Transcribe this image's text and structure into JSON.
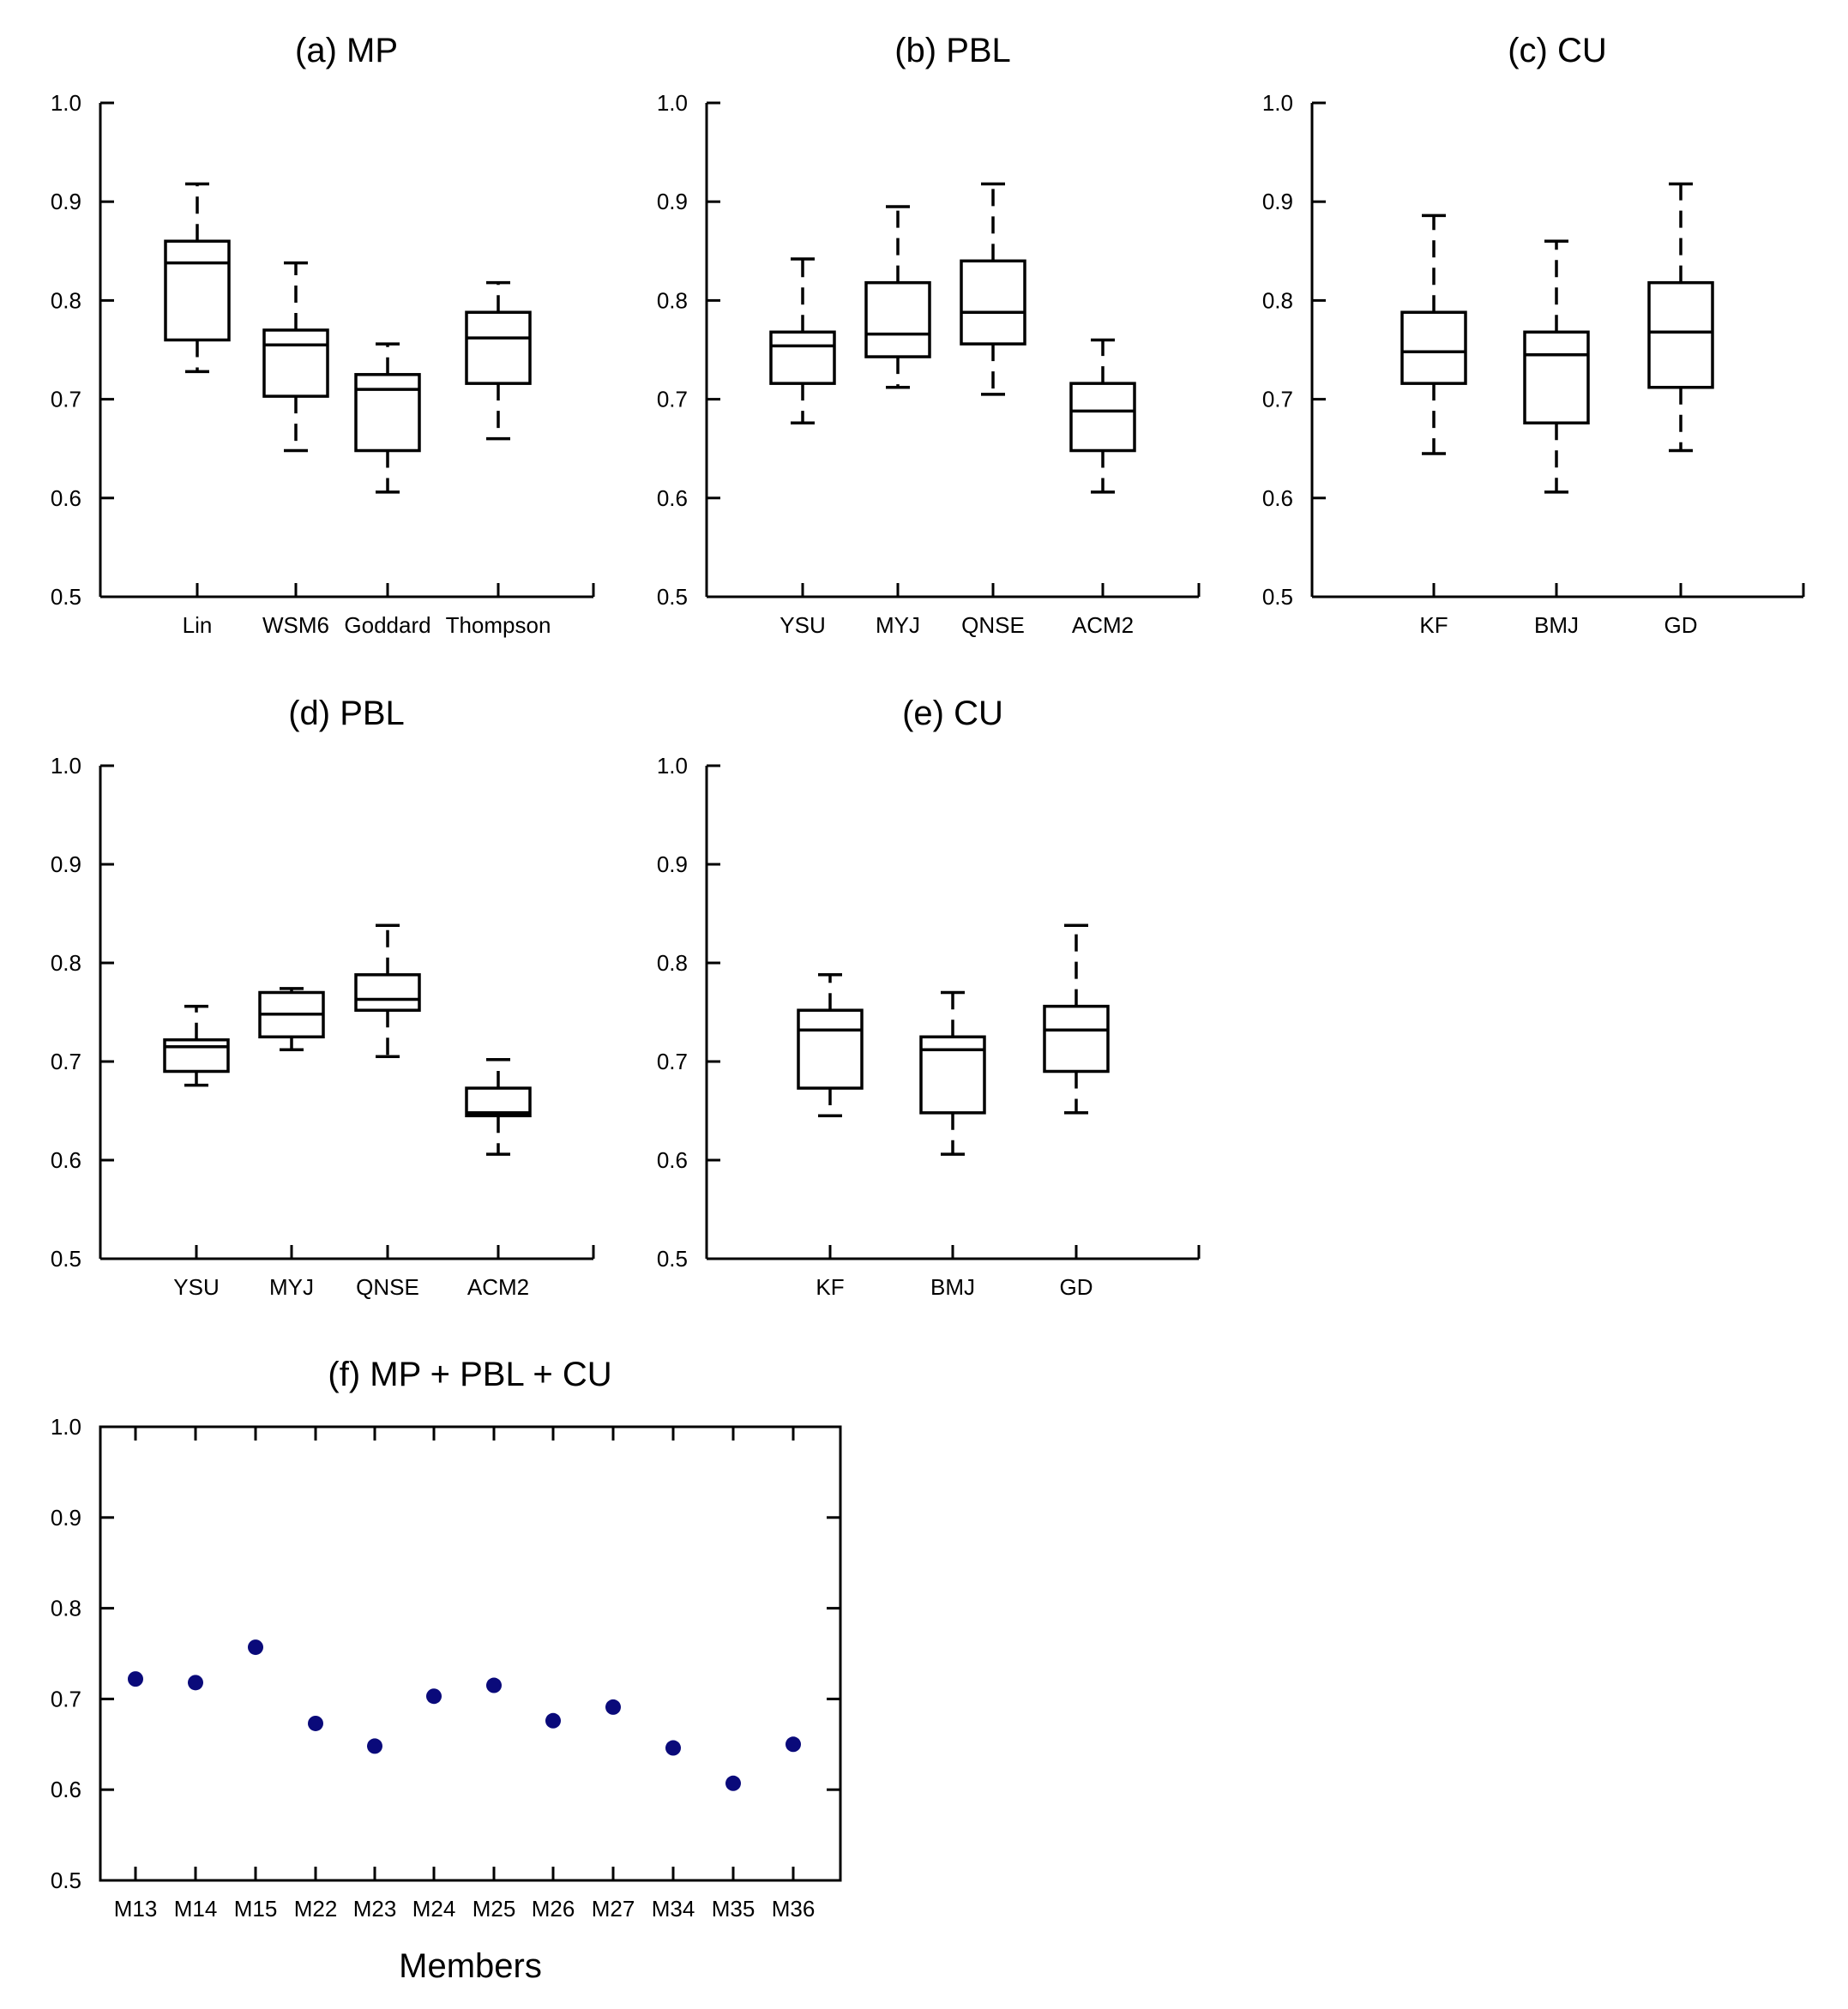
{
  "chart_data": [
    {
      "type": "box",
      "title": "(a) MP",
      "ylim": [
        0.5,
        1.0
      ],
      "yticks": [
        "0.5",
        "0.6",
        "0.7",
        "0.8",
        "0.9",
        "1.0"
      ],
      "categories": [
        "Lin",
        "WSM6",
        "Goddard",
        "Thompson"
      ],
      "boxes": [
        {
          "min": 0.728,
          "q1": 0.76,
          "median": 0.838,
          "q3": 0.86,
          "max": 0.918
        },
        {
          "min": 0.648,
          "q1": 0.703,
          "median": 0.755,
          "q3": 0.77,
          "max": 0.838
        },
        {
          "min": 0.606,
          "q1": 0.648,
          "median": 0.71,
          "q3": 0.725,
          "max": 0.756
        },
        {
          "min": 0.66,
          "q1": 0.716,
          "median": 0.762,
          "q3": 0.788,
          "max": 0.818
        }
      ]
    },
    {
      "type": "box",
      "title": "(b) PBL",
      "ylim": [
        0.5,
        1.0
      ],
      "yticks": [
        "0.5",
        "0.6",
        "0.7",
        "0.8",
        "0.9",
        "1.0"
      ],
      "categories": [
        "YSU",
        "MYJ",
        "QNSE",
        "ACM2"
      ],
      "boxes": [
        {
          "min": 0.676,
          "q1": 0.716,
          "median": 0.754,
          "q3": 0.768,
          "max": 0.842
        },
        {
          "min": 0.712,
          "q1": 0.743,
          "median": 0.766,
          "q3": 0.818,
          "max": 0.895
        },
        {
          "min": 0.705,
          "q1": 0.756,
          "median": 0.788,
          "q3": 0.84,
          "max": 0.918
        },
        {
          "min": 0.606,
          "q1": 0.648,
          "median": 0.688,
          "q3": 0.716,
          "max": 0.76
        }
      ]
    },
    {
      "type": "box",
      "title": "(c) CU",
      "ylim": [
        0.5,
        1.0
      ],
      "yticks": [
        "0.5",
        "0.6",
        "0.7",
        "0.8",
        "0.9",
        "1.0"
      ],
      "categories": [
        "KF",
        "BMJ",
        "GD"
      ],
      "boxes": [
        {
          "min": 0.645,
          "q1": 0.716,
          "median": 0.748,
          "q3": 0.788,
          "max": 0.886
        },
        {
          "min": 0.606,
          "q1": 0.676,
          "median": 0.745,
          "q3": 0.768,
          "max": 0.86
        },
        {
          "min": 0.648,
          "q1": 0.712,
          "median": 0.768,
          "q3": 0.818,
          "max": 0.918
        }
      ]
    },
    {
      "type": "box",
      "title": "(d) PBL",
      "ylim": [
        0.5,
        1.0
      ],
      "yticks": [
        "0.5",
        "0.6",
        "0.7",
        "0.8",
        "0.9",
        "1.0"
      ],
      "categories": [
        "YSU",
        "MYJ",
        "QNSE",
        "ACM2"
      ],
      "boxes": [
        {
          "min": 0.676,
          "q1": 0.69,
          "median": 0.715,
          "q3": 0.722,
          "max": 0.756
        },
        {
          "min": 0.712,
          "q1": 0.725,
          "median": 0.748,
          "q3": 0.77,
          "max": 0.774
        },
        {
          "min": 0.705,
          "q1": 0.752,
          "median": 0.763,
          "q3": 0.788,
          "max": 0.838
        },
        {
          "min": 0.606,
          "q1": 0.645,
          "median": 0.648,
          "q3": 0.673,
          "max": 0.702
        }
      ]
    },
    {
      "type": "box",
      "title": "(e) CU",
      "ylim": [
        0.5,
        1.0
      ],
      "yticks": [
        "0.5",
        "0.6",
        "0.7",
        "0.8",
        "0.9",
        "1.0"
      ],
      "categories": [
        "KF",
        "BMJ",
        "GD"
      ],
      "boxes": [
        {
          "min": 0.645,
          "q1": 0.673,
          "median": 0.732,
          "q3": 0.752,
          "max": 0.788
        },
        {
          "min": 0.606,
          "q1": 0.648,
          "median": 0.712,
          "q3": 0.725,
          "max": 0.77
        },
        {
          "min": 0.648,
          "q1": 0.69,
          "median": 0.732,
          "q3": 0.756,
          "max": 0.838
        }
      ]
    },
    {
      "type": "scatter",
      "title": "(f) MP + PBL + CU",
      "xlabel": "Members",
      "ylim": [
        0.5,
        1.0
      ],
      "yticks": [
        "0.5",
        "0.6",
        "0.7",
        "0.8",
        "0.9",
        "1.0"
      ],
      "categories": [
        "M13",
        "M14",
        "M15",
        "M22",
        "M23",
        "M24",
        "M25",
        "M26",
        "M27",
        "M34",
        "M35",
        "M36"
      ],
      "values": [
        0.722,
        0.718,
        0.757,
        0.673,
        0.648,
        0.703,
        0.715,
        0.676,
        0.691,
        0.646,
        0.607,
        0.65
      ],
      "marker_color": "#0a0a7a"
    }
  ]
}
